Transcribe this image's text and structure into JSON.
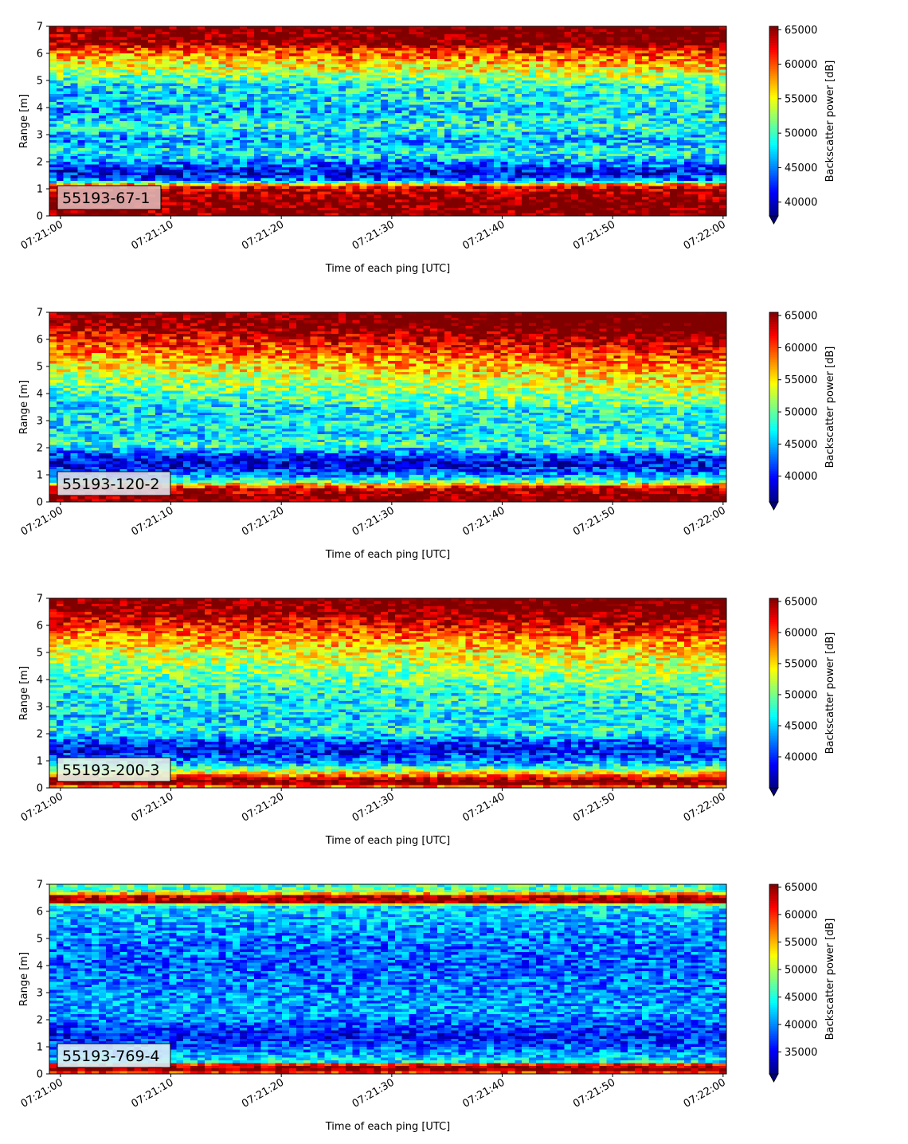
{
  "chart_data": [
    {
      "type": "heatmap",
      "label": "55193-67-1",
      "label_bg": "#e0b4b4",
      "xlabel": "Time of each ping [UTC]",
      "ylabel": "Range [m]",
      "colorbar_label": "Backscatter power [dB]",
      "colormap": "jet",
      "x_ticks": [
        "07:21:00",
        "07:21:10",
        "07:21:20",
        "07:21:30",
        "07:21:40",
        "07:21:50",
        "07:22:00"
      ],
      "y_ticks": [
        0,
        1,
        2,
        3,
        4,
        5,
        6,
        7
      ],
      "ylim": [
        0,
        7
      ],
      "xlim_seconds": [
        -1,
        60.3
      ],
      "clim": [
        38000,
        65500
      ],
      "colorbar_ticks": [
        40000,
        45000,
        50000,
        55000,
        60000,
        65000
      ],
      "profile": {
        "range_m": [
          0.0,
          0.2,
          0.5,
          0.9,
          1.1,
          1.3,
          1.6,
          1.9,
          2.3,
          2.8,
          3.3,
          3.8,
          4.3,
          4.8,
          5.3,
          5.7,
          6.1,
          6.4,
          6.8,
          7.0
        ],
        "power": [
          65500,
          65500,
          65500,
          64500,
          61000,
          45000,
          40500,
          44000,
          48500,
          45500,
          49000,
          45500,
          47000,
          47500,
          52500,
          56000,
          59500,
          65000,
          65500,
          65500
        ]
      },
      "trend_power_per_minute": 1500
    },
    {
      "type": "heatmap",
      "label": "55193-120-2",
      "label_bg": "#dcdce8",
      "xlabel": "Time of each ping [UTC]",
      "ylabel": "Range [m]",
      "colorbar_label": "Backscatter power [dB]",
      "colormap": "jet",
      "x_ticks": [
        "07:21:00",
        "07:21:10",
        "07:21:20",
        "07:21:30",
        "07:21:40",
        "07:21:50",
        "07:22:00"
      ],
      "y_ticks": [
        0,
        1,
        2,
        3,
        4,
        5,
        6,
        7
      ],
      "ylim": [
        0,
        7
      ],
      "xlim_seconds": [
        -1,
        60.3
      ],
      "clim": [
        36000,
        65500
      ],
      "colorbar_ticks": [
        40000,
        45000,
        50000,
        55000,
        60000,
        65000
      ],
      "profile": {
        "range_m": [
          0.0,
          0.2,
          0.5,
          0.8,
          1.1,
          1.4,
          1.7,
          2.1,
          2.5,
          3.0,
          3.4,
          4.0,
          4.5,
          5.0,
          5.5,
          6.0,
          6.5,
          7.0
        ],
        "power": [
          65500,
          65500,
          62000,
          47000,
          41000,
          38000,
          40500,
          48500,
          45500,
          47000,
          45500,
          48500,
          51000,
          54000,
          57500,
          61000,
          64500,
          65500
        ]
      },
      "trend_power_per_minute": 2500
    },
    {
      "type": "heatmap",
      "label": "55193-200-3",
      "label_bg": "#e6f4e6",
      "xlabel": "Time of each ping [UTC]",
      "ylabel": "Range [m]",
      "colorbar_label": "Backscatter power [dB]",
      "colormap": "jet",
      "x_ticks": [
        "07:21:00",
        "07:21:10",
        "07:21:20",
        "07:21:30",
        "07:21:40",
        "07:21:50",
        "07:22:00"
      ],
      "y_ticks": [
        0,
        1,
        2,
        3,
        4,
        5,
        6,
        7
      ],
      "ylim": [
        0,
        7
      ],
      "xlim_seconds": [
        -1,
        60.3
      ],
      "clim": [
        35000,
        65500
      ],
      "colorbar_ticks": [
        40000,
        45000,
        50000,
        55000,
        60000,
        65000
      ],
      "profile": {
        "range_m": [
          0.0,
          0.15,
          0.3,
          0.5,
          0.8,
          1.1,
          1.4,
          1.7,
          2.1,
          2.5,
          3.0,
          3.5,
          4.0,
          4.5,
          5.0,
          5.5,
          6.0,
          6.5,
          7.0
        ],
        "power": [
          55000,
          65500,
          65500,
          56000,
          46000,
          40500,
          38500,
          40500,
          47000,
          45000,
          46500,
          46000,
          48500,
          50500,
          52500,
          56500,
          60500,
          64500,
          65500
        ]
      },
      "trend_power_per_minute": 1500
    },
    {
      "type": "heatmap",
      "label": "55193-769-4",
      "label_bg": "#dceef6",
      "xlabel": "Time of each ping [UTC]",
      "ylabel": "Range [m]",
      "colorbar_label": "Backscatter power [dB]",
      "colormap": "jet",
      "x_ticks": [
        "07:21:00",
        "07:21:10",
        "07:21:20",
        "07:21:30",
        "07:21:40",
        "07:21:50",
        "07:22:00"
      ],
      "y_ticks": [
        0,
        1,
        2,
        3,
        4,
        5,
        6,
        7
      ],
      "ylim": [
        0,
        7
      ],
      "xlim_seconds": [
        -1,
        60.3
      ],
      "clim": [
        31000,
        65500
      ],
      "colorbar_ticks": [
        35000,
        40000,
        45000,
        50000,
        55000,
        60000,
        65000
      ],
      "profile": {
        "range_m": [
          0.0,
          0.12,
          0.22,
          0.35,
          0.45,
          0.7,
          1.0,
          1.4,
          1.8,
          2.3,
          3.0,
          4.0,
          5.0,
          5.8,
          6.2,
          6.35,
          6.55,
          6.75,
          7.0
        ],
        "power": [
          56000,
          65500,
          65500,
          60000,
          44000,
          41000,
          38500,
          35500,
          38000,
          41000,
          40000,
          38500,
          39500,
          41500,
          43500,
          65500,
          63000,
          46500,
          46000
        ]
      },
      "trend_power_per_minute": 0
    }
  ]
}
